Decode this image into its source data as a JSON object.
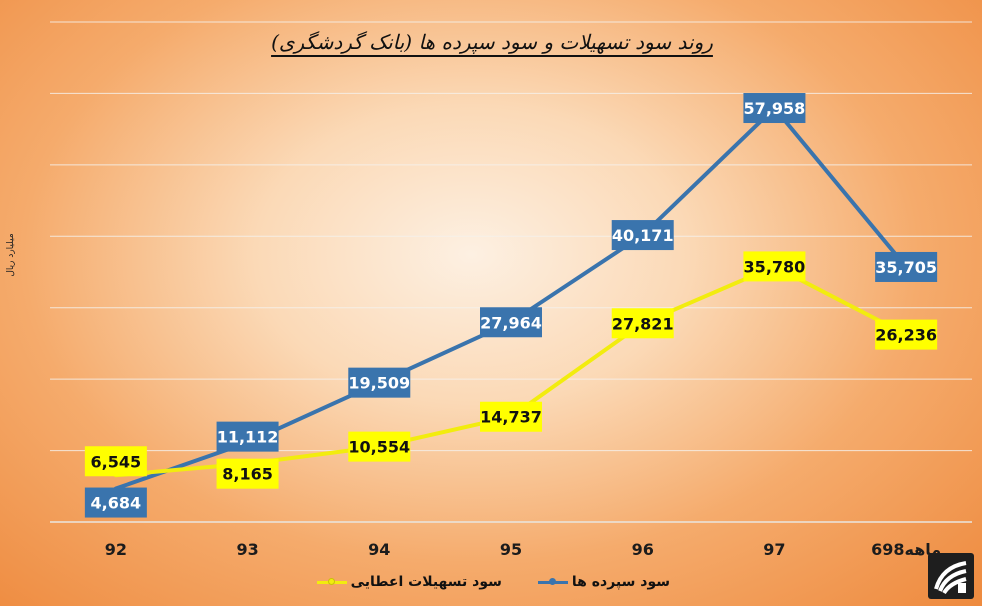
{
  "chart_data": {
    "type": "line",
    "title": "روند سود تسهیلات و سود سپرده ها (بانک گردشگری)",
    "ylabel": "میلیارد ریال",
    "xlabel": "",
    "categories": [
      "92",
      "93",
      "94",
      "95",
      "96",
      "97",
      "6ماهه98"
    ],
    "ylim": [
      0,
      70000
    ],
    "grid": true,
    "legend_position": "bottom",
    "series": [
      {
        "name": "سود سپرده ها",
        "color": "#3a74ad",
        "label_bg": "#3a74ad",
        "label_color": "#ffffff",
        "values": [
          4684,
          11112,
          19509,
          27964,
          40171,
          57958,
          35705
        ],
        "labels": [
          "4,684",
          "11,112",
          "19,509",
          "27,964",
          "40,171",
          "57,958",
          "35,705"
        ]
      },
      {
        "name": "سود تسهیلات اعطایی",
        "color": "#f2ec0e",
        "label_bg": "#ffff00",
        "label_color": "#111111",
        "values": [
          6545,
          8165,
          10554,
          14737,
          27821,
          35780,
          26236
        ],
        "labels": [
          "6,545",
          "8,165",
          "10,554",
          "14,737",
          "27,821",
          "35,780",
          "26,236"
        ]
      }
    ]
  },
  "logo": {
    "icon": "bank-logo-icon"
  }
}
